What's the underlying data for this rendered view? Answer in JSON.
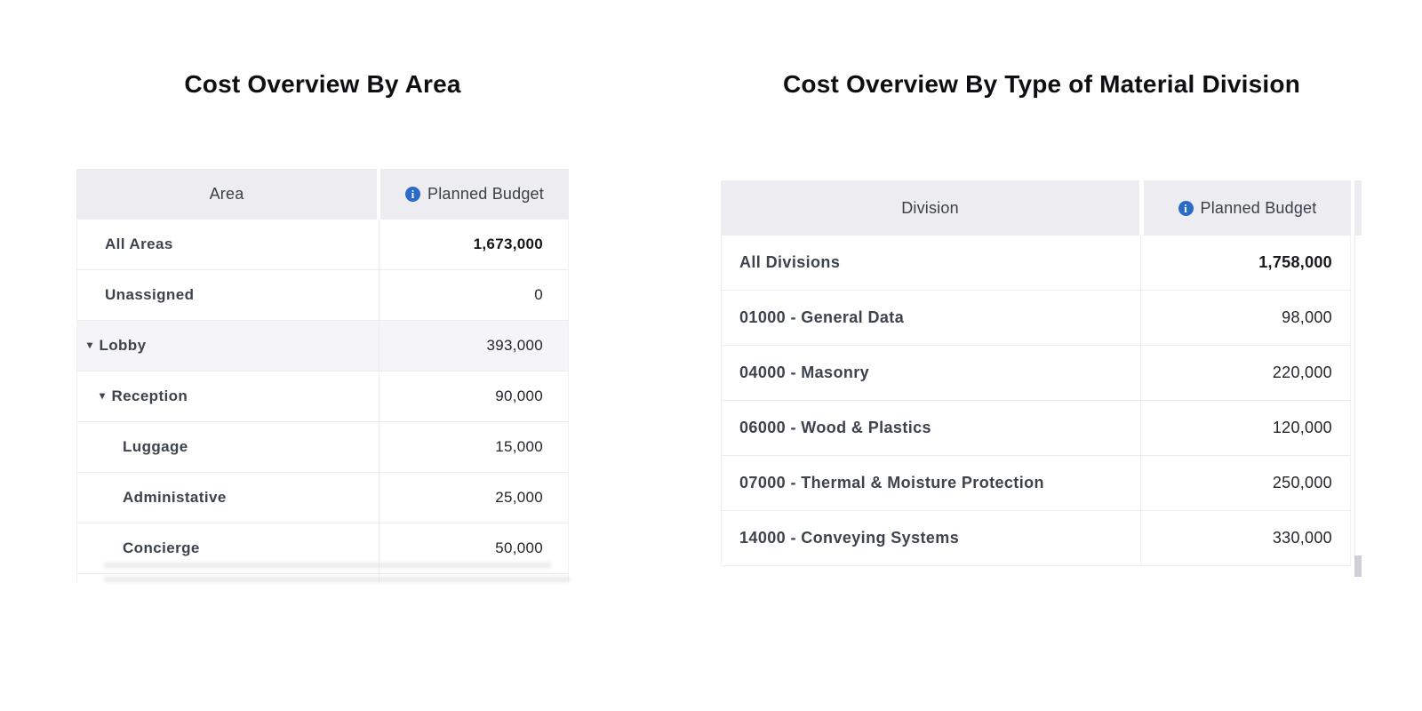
{
  "icons": {
    "info_glyph": "i",
    "caret_glyph": "▾"
  },
  "colors": {
    "info_icon_blue": "#2a6bc8",
    "header_background": "#ededf1",
    "shaded_row_background": "#f5f5f7",
    "row_border": "#e9ebf0",
    "title_text": "#0e0f12",
    "label_text": "#3c434d",
    "value_text": "#23262c"
  },
  "left_panel": {
    "title": "Cost Overview By Area",
    "columns": [
      {
        "label": "Area",
        "info_icon": false
      },
      {
        "label": "Planned Budget",
        "info_icon": true
      }
    ],
    "rows": [
      {
        "label": "All Areas",
        "value": "1,673,000",
        "level": 0,
        "caret": false,
        "total": true,
        "shaded": false
      },
      {
        "label": "Unassigned",
        "value": "0",
        "level": 0,
        "caret": false,
        "total": false,
        "shaded": false
      },
      {
        "label": "Lobby",
        "value": "393,000",
        "level": 1,
        "caret": true,
        "total": false,
        "shaded": true
      },
      {
        "label": "Reception",
        "value": "90,000",
        "level": 2,
        "caret": true,
        "total": false,
        "shaded": false
      },
      {
        "label": "Luggage",
        "value": "15,000",
        "level": 3,
        "caret": false,
        "total": false,
        "shaded": false
      },
      {
        "label": "Administative",
        "value": "25,000",
        "level": 3,
        "caret": false,
        "total": false,
        "shaded": false
      },
      {
        "label": "Concierge",
        "value": "50,000",
        "level": 3,
        "caret": false,
        "total": false,
        "shaded": false
      }
    ]
  },
  "right_panel": {
    "title": "Cost Overview By Type of Material Division",
    "columns": [
      {
        "label": "Division",
        "info_icon": false
      },
      {
        "label": "Planned Budget",
        "info_icon": true
      }
    ],
    "rows": [
      {
        "label": "All Divisions",
        "value": "1,758,000",
        "level": 0,
        "caret": false,
        "total": true,
        "shaded": false
      },
      {
        "label": "01000 - General Data",
        "value": "98,000",
        "level": 0,
        "caret": false,
        "total": false,
        "shaded": false
      },
      {
        "label": "04000 - Masonry",
        "value": "220,000",
        "level": 0,
        "caret": false,
        "total": false,
        "shaded": false
      },
      {
        "label": "06000 - Wood & Plastics",
        "value": "120,000",
        "level": 0,
        "caret": false,
        "total": false,
        "shaded": false
      },
      {
        "label": "07000 - Thermal & Moisture Protection",
        "value": "250,000",
        "level": 0,
        "caret": false,
        "total": false,
        "shaded": false
      },
      {
        "label": "14000 - Conveying Systems",
        "value": "330,000",
        "level": 0,
        "caret": false,
        "total": false,
        "shaded": false
      }
    ]
  }
}
